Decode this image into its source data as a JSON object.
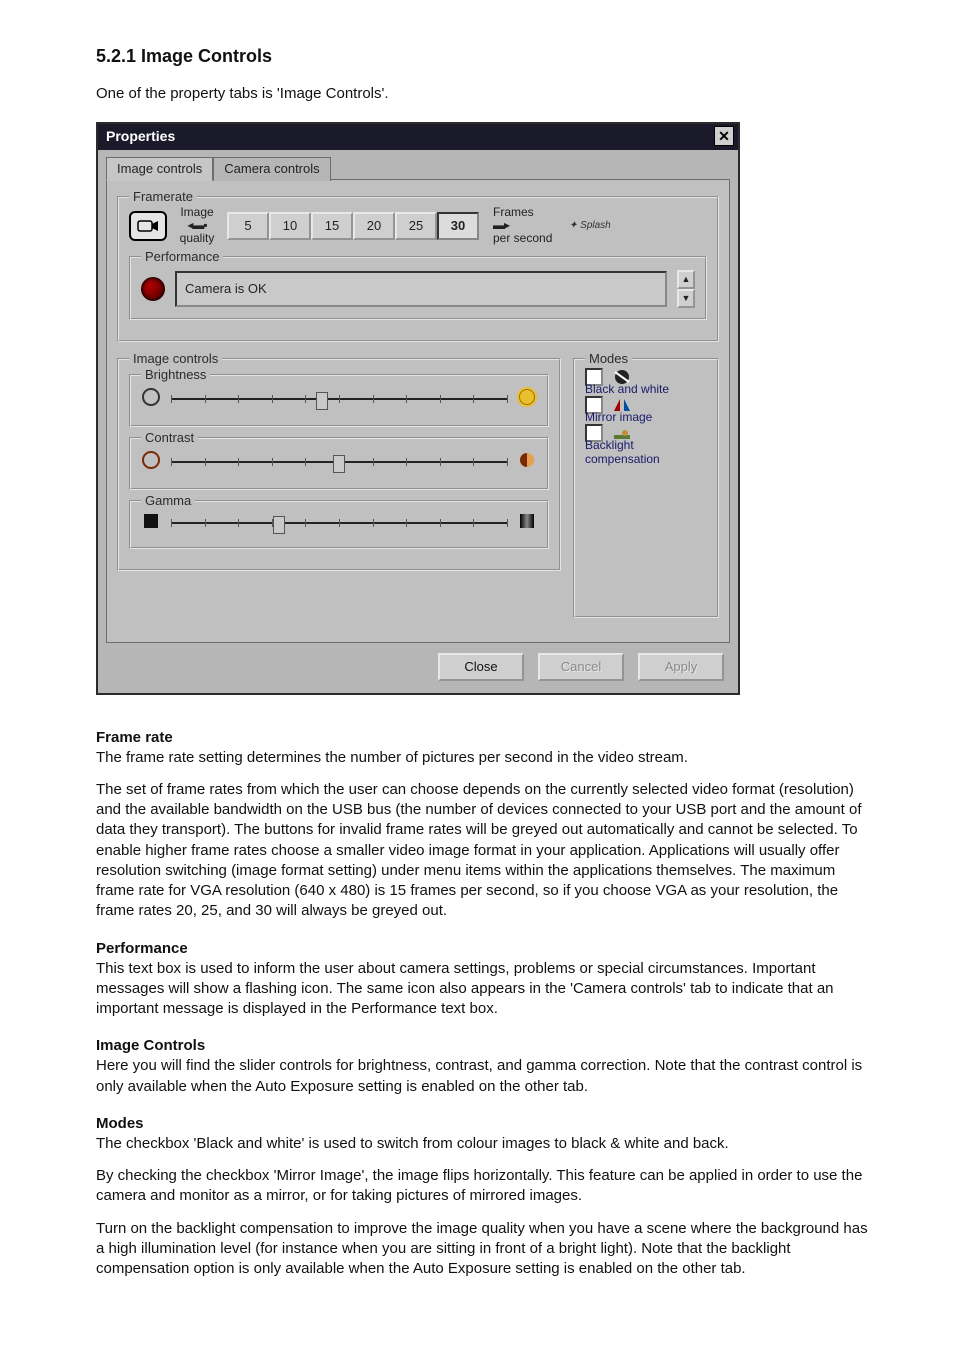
{
  "doc": {
    "heading": "5.2.1 Image Controls",
    "intro": "One of the property tabs is 'Image Controls'.",
    "sections": {
      "framerate": {
        "title": "Frame rate",
        "p1": "The frame rate setting determines the number of pictures per second in the video stream.",
        "p2": "The set of frame rates from which the user can choose depends on the currently selected video format (resolution) and the available bandwidth on the USB bus (the number of devices connected to your USB port and the amount of data they transport). The buttons for invalid frame rates will be greyed out automatically and cannot be selected. To enable higher frame rates choose a smaller video image format in your application. Applications will usually offer resolution switching (image format setting) under menu items within the applications themselves. The maximum frame rate for VGA resolution (640 x 480) is 15 frames per second, so if you choose VGA as your resolution, the frame rates 20, 25, and 30 will always be greyed out."
      },
      "performance": {
        "title": "Performance",
        "p1": "This text box is used to inform the user about camera settings, problems or special circumstances. Important messages will show a flashing icon. The same icon also appears in the 'Camera controls' tab to indicate that an important message is displayed in the Performance text box."
      },
      "imgctrl": {
        "title": "Image Controls",
        "p1": "Here you will find the slider controls for brightness, contrast, and gamma correction. Note that the contrast control is only available when the Auto Exposure setting is enabled on the other tab."
      },
      "modes": {
        "title": "Modes",
        "p1": "The checkbox 'Black and white' is used to switch from colour images to black & white and back.",
        "p2": "By checking the checkbox 'Mirror Image', the image flips horizontally. This feature can be applied in order to use the camera and monitor as a mirror, or for taking pictures of mirrored images.",
        "p3": "Turn on the backlight compensation to improve the image quality when you have a scene where the background has a high illumination level (for instance when you are sitting in front of a bright light). Note that the backlight compensation option is only available when the Auto Exposure setting is enabled on the other tab."
      }
    }
  },
  "dialog": {
    "title": "Properties",
    "tabs": {
      "image": "Image controls",
      "camera": "Camera controls"
    },
    "active_tab": "image",
    "framerate": {
      "legend": "Framerate",
      "quality_top": "Image",
      "quality_bot": "quality",
      "rates": [
        "5",
        "10",
        "15",
        "20",
        "25",
        "30"
      ],
      "selected_rate": "30",
      "fps_top": "Frames",
      "fps_bot": "per second",
      "perf_legend": "Performance",
      "perf_text": "Camera is OK"
    },
    "imgctrl": {
      "legend": "Image controls",
      "brightness": {
        "legend": "Brightness",
        "value_pct": 45
      },
      "contrast": {
        "legend": "Contrast",
        "value_pct": 50
      },
      "gamma": {
        "legend": "Gamma",
        "value_pct": 32
      }
    },
    "modes": {
      "legend": "Modes",
      "bw": {
        "label": "Black and white",
        "checked": false
      },
      "mirror": {
        "label": "Mirror image",
        "checked": false
      },
      "backlight": {
        "label": "Backlight compensation",
        "checked": false
      }
    },
    "buttons": {
      "close": "Close",
      "cancel": "Cancel",
      "apply": "Apply"
    }
  },
  "style": {
    "page_bg": "#ffffff",
    "dialog_bg": "#b6b6b6",
    "panel_bg": "#c0c0c0",
    "titlebar_bg": "#1a1a2a",
    "titlebar_fg": "#ffffff",
    "btn_face": "#cfcfcf",
    "led_color": "#b00000",
    "mode_label_color": "#1a1a6a",
    "track_color": "#222222"
  }
}
